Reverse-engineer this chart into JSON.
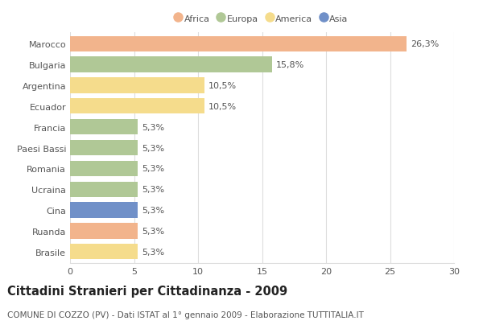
{
  "countries": [
    "Marocco",
    "Bulgaria",
    "Argentina",
    "Ecuador",
    "Francia",
    "Paesi Bassi",
    "Romania",
    "Ucraina",
    "Cina",
    "Ruanda",
    "Brasile"
  ],
  "values": [
    26.3,
    15.8,
    10.5,
    10.5,
    5.3,
    5.3,
    5.3,
    5.3,
    5.3,
    5.3,
    5.3
  ],
  "labels": [
    "26,3%",
    "15,8%",
    "10,5%",
    "10,5%",
    "5,3%",
    "5,3%",
    "5,3%",
    "5,3%",
    "5,3%",
    "5,3%",
    "5,3%"
  ],
  "continents": [
    "Africa",
    "Europa",
    "America",
    "America",
    "Europa",
    "Europa",
    "Europa",
    "Europa",
    "Asia",
    "Africa",
    "America"
  ],
  "colors": {
    "Africa": "#F2B48C",
    "Europa": "#B0C896",
    "America": "#F5DC8C",
    "Asia": "#7090C8"
  },
  "legend_order": [
    "Africa",
    "Europa",
    "America",
    "Asia"
  ],
  "title": "Cittadini Stranieri per Cittadinanza - 2009",
  "subtitle": "COMUNE DI COZZO (PV) - Dati ISTAT al 1° gennaio 2009 - Elaborazione TUTTITALIA.IT",
  "xlim": [
    0,
    30
  ],
  "xticks": [
    0,
    5,
    10,
    15,
    20,
    25,
    30
  ],
  "bg_color": "#FFFFFF",
  "grid_color": "#DDDDDD",
  "bar_height": 0.75,
  "label_fontsize": 8,
  "title_fontsize": 10.5,
  "subtitle_fontsize": 7.5,
  "tick_fontsize": 8
}
